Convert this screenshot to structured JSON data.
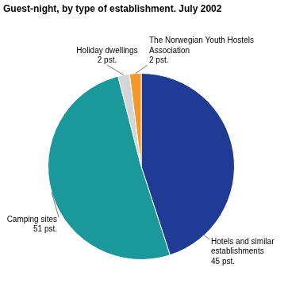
{
  "chart_data": {
    "type": "pie",
    "title": "Guest-night, by type of establishment. July 2002",
    "categories": [
      "Hotels and similar establishments",
      "Camping sites",
      "Holiday dwellings",
      "The Norwegian Youth Hostels Association"
    ],
    "values": [
      45,
      51,
      2,
      2
    ],
    "value_labels": [
      "45 pst.",
      "51 pst.",
      "2 pst.",
      "2 pst."
    ],
    "colors": [
      "#1f3b94",
      "#1b9899",
      "#d3d5d6",
      "#f3992a"
    ],
    "data_labels": true
  }
}
